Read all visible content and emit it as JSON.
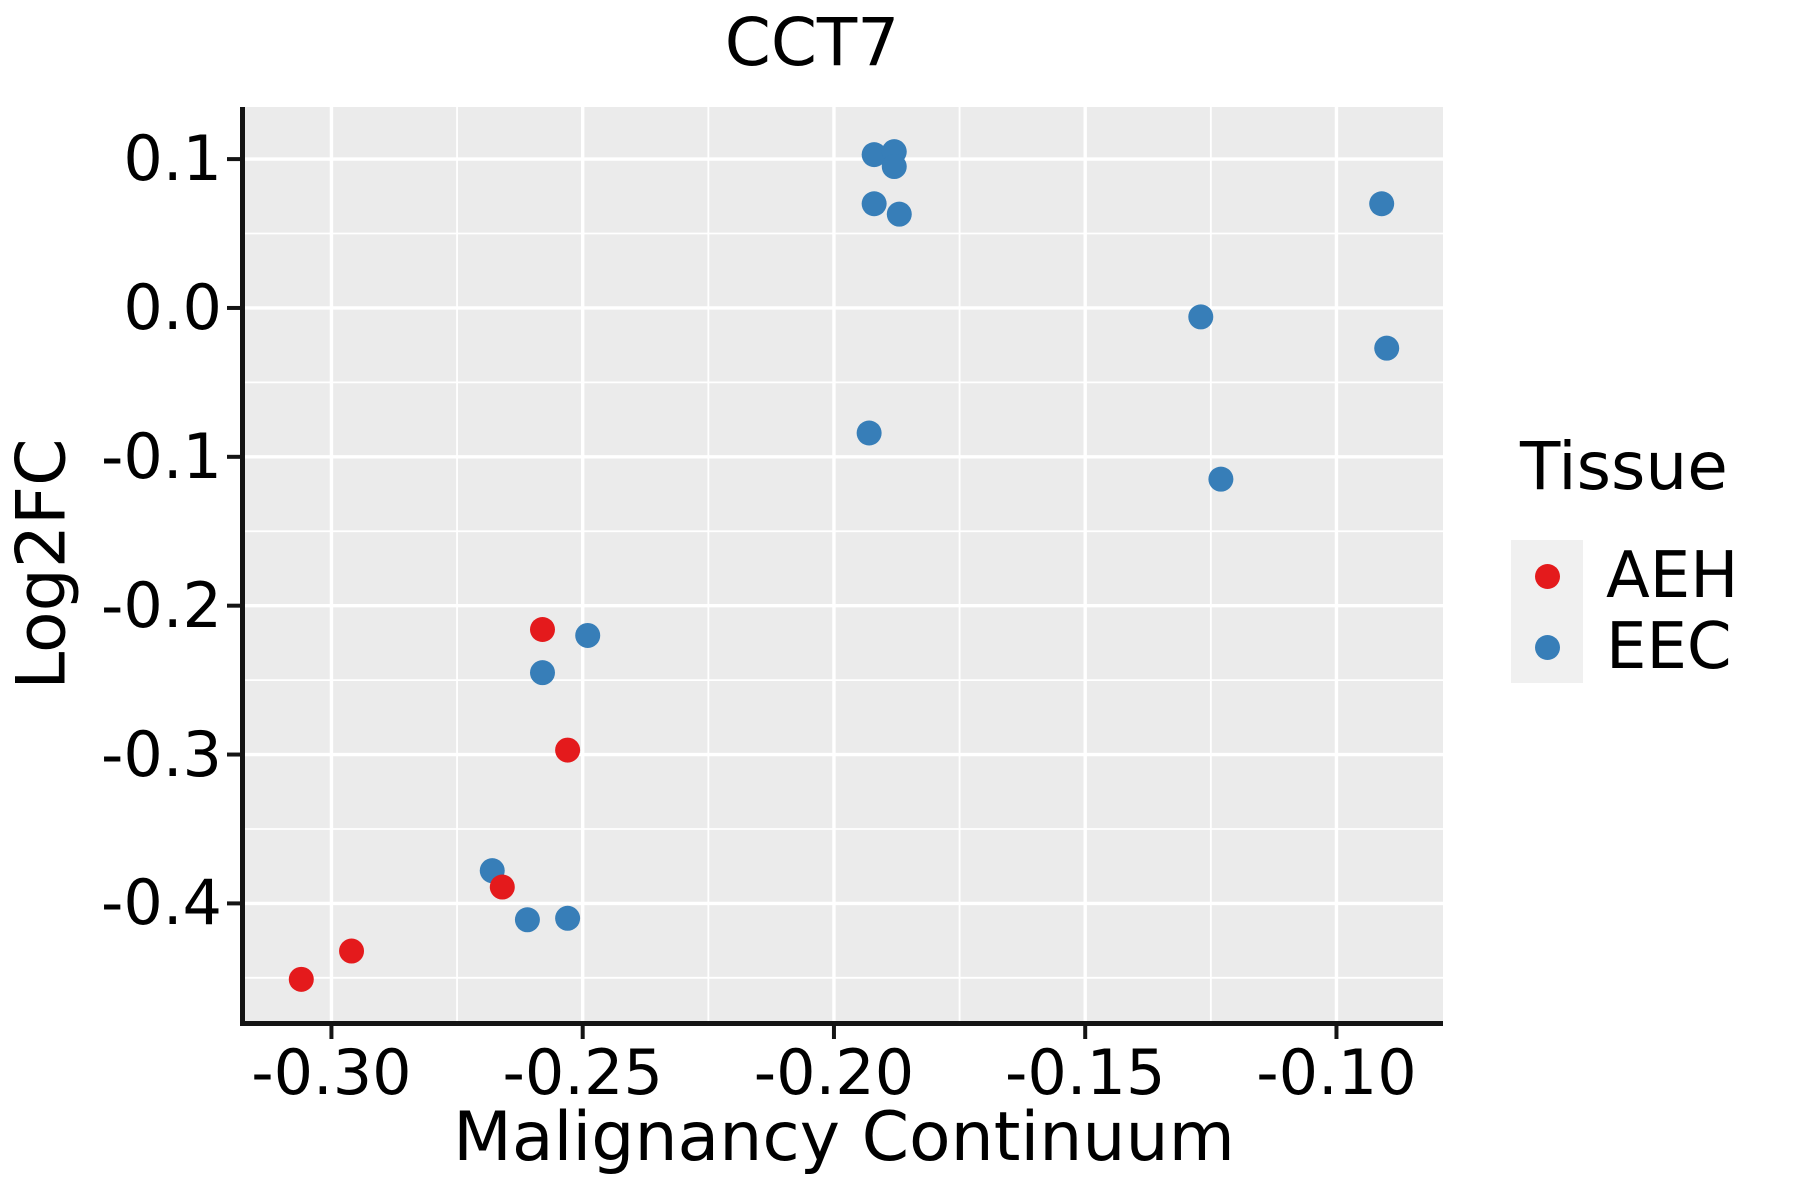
{
  "title": "CCT7",
  "axes": {
    "x": {
      "label": "Malignancy Continuum",
      "ticks": [
        -0.3,
        -0.25,
        -0.2,
        -0.15,
        -0.1
      ],
      "tick_labels": [
        "-0.30",
        "-0.25",
        "-0.20",
        "-0.15",
        "-0.10"
      ],
      "range": [
        -0.3172,
        -0.0788
      ]
    },
    "y": {
      "label": "Log2FC",
      "ticks": [
        0.1,
        0.0,
        -0.1,
        -0.2,
        -0.3,
        -0.4
      ],
      "tick_labels": [
        "0.1",
        "0.0",
        "-0.1",
        "-0.2",
        "-0.3",
        "-0.4"
      ],
      "range": [
        -0.479,
        0.135
      ]
    }
  },
  "legend": {
    "title": "Tissue",
    "entries": [
      {
        "label": "AEH",
        "color": "#E41A1C"
      },
      {
        "label": "EEC",
        "color": "#377EB8"
      }
    ]
  },
  "colors": {
    "panel_background": "#EBEBEB",
    "grid_major": "#FFFFFF",
    "grid_minor": "#FFFFFF",
    "axis": "#141414",
    "legend_key_background": "#F0F0F0"
  },
  "chart_data": {
    "type": "scatter",
    "title": "CCT7",
    "xlabel": "Malignancy Continuum",
    "ylabel": "Log2FC",
    "xlim": [
      -0.3172,
      -0.0788
    ],
    "ylim": [
      -0.479,
      0.135
    ],
    "grid": "major+minor, white on gray panel",
    "legend_position": "right",
    "point_radius_px": 12.5,
    "series": [
      {
        "name": "EEC",
        "color": "#377EB8",
        "points": [
          [
            -0.268,
            -0.378
          ],
          [
            -0.261,
            -0.411
          ],
          [
            -0.253,
            -0.41
          ],
          [
            -0.258,
            -0.245
          ],
          [
            -0.249,
            -0.22
          ],
          [
            -0.192,
            0.103
          ],
          [
            -0.188,
            0.105
          ],
          [
            -0.188,
            0.095
          ],
          [
            -0.192,
            0.07
          ],
          [
            -0.187,
            0.063
          ],
          [
            -0.193,
            -0.084
          ],
          [
            -0.127,
            -0.006
          ],
          [
            -0.123,
            -0.115
          ],
          [
            -0.091,
            0.07
          ],
          [
            -0.09,
            -0.027
          ]
        ]
      },
      {
        "name": "AEH",
        "color": "#E41A1C",
        "points": [
          [
            -0.306,
            -0.451
          ],
          [
            -0.296,
            -0.432
          ],
          [
            -0.266,
            -0.389
          ],
          [
            -0.258,
            -0.216
          ],
          [
            -0.253,
            -0.297
          ]
        ]
      }
    ]
  }
}
